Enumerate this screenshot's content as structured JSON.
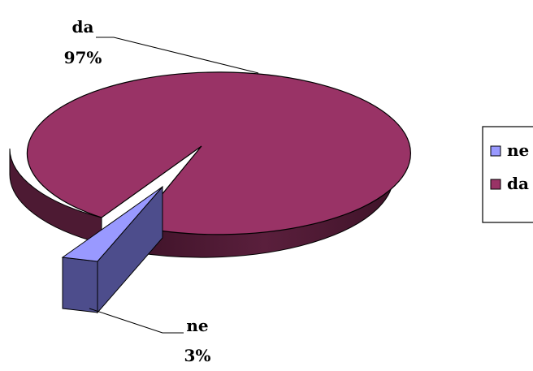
{
  "chart_data": {
    "type": "pie",
    "style": "3d-exploded",
    "title": "",
    "slices": [
      {
        "label": "ne",
        "value": 3,
        "display": "3%",
        "color": "#9999ff",
        "side_color": "#4d4d8c",
        "exploded": true
      },
      {
        "label": "da",
        "value": 97,
        "display": "97%",
        "color": "#993366",
        "side_color": "#4d1a33",
        "exploded": false
      }
    ],
    "legend": {
      "placement": "right",
      "entries": [
        {
          "label": "ne",
          "color": "#9999ff"
        },
        {
          "label": "da",
          "color": "#993366"
        }
      ]
    }
  }
}
